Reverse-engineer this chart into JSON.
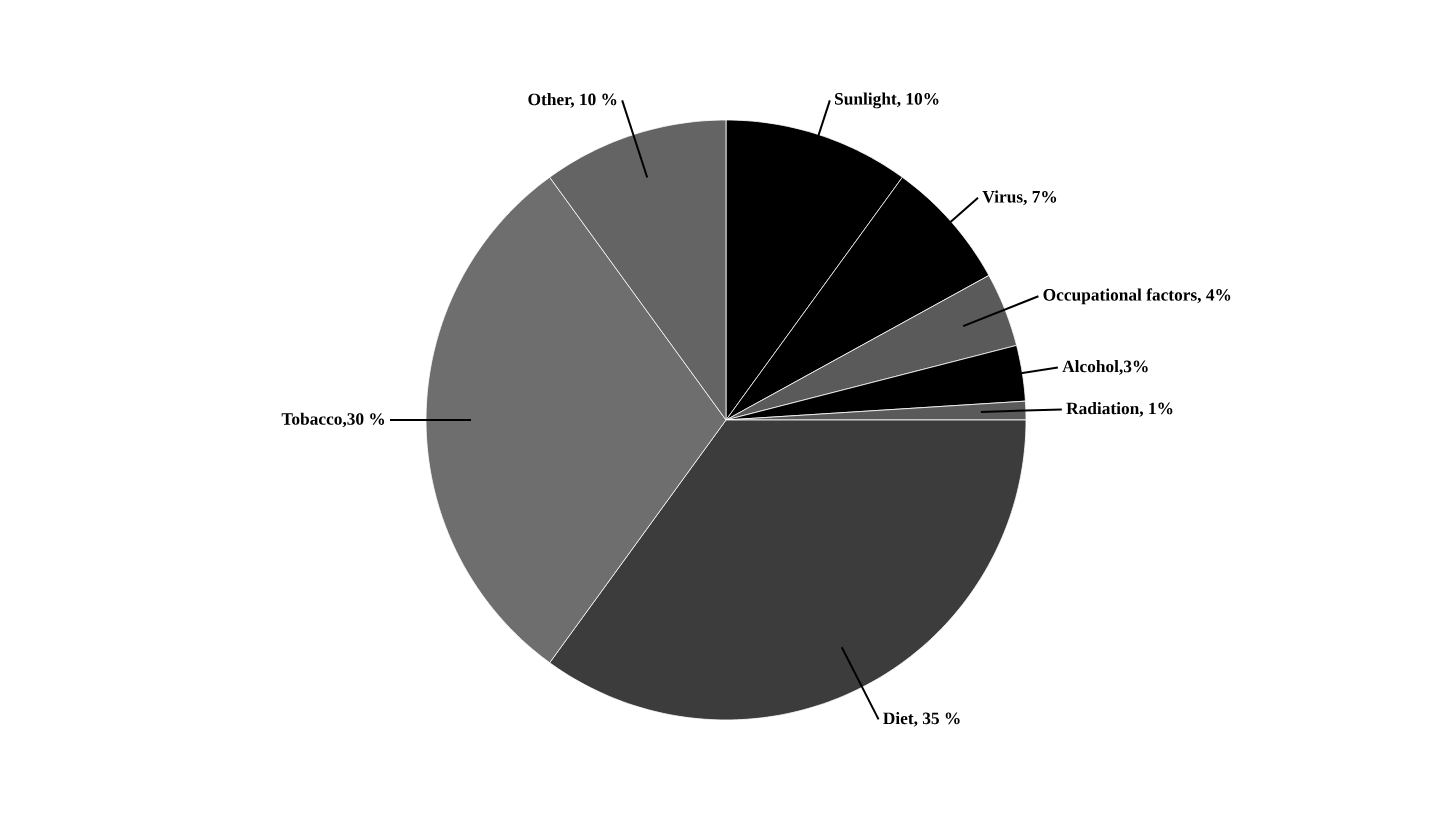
{
  "chart_data": {
    "type": "pie",
    "categories": [
      "Sunlight, 10%",
      "Virus, 7%",
      "Occupational factors, 4%",
      "Alcohol,3%",
      "Radiation, 1%",
      "Diet, 35 %",
      "Tobacco,30 %",
      "Other, 10 %"
    ],
    "values": [
      10,
      7,
      4,
      3,
      1,
      35,
      30,
      10
    ],
    "colors": [
      "#000000",
      "#000000",
      "#5a5a5a",
      "#000000",
      "#5a5a5a",
      "#3c3c3c",
      "#6e6e6e",
      "#646464"
    ]
  }
}
